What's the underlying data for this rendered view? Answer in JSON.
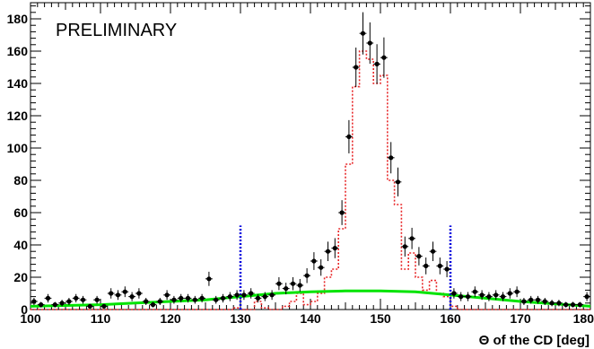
{
  "chart_data": {
    "type": "scatter",
    "xlabel": "Θ of the CD [deg]",
    "ylabel": "",
    "annotation": "PRELIMINARY",
    "xlim": [
      100,
      180
    ],
    "ylim": [
      0,
      190
    ],
    "x_ticks": [
      100,
      110,
      120,
      130,
      140,
      150,
      160,
      170,
      180
    ],
    "y_ticks": [
      20,
      40,
      60,
      80,
      100,
      120,
      140,
      160,
      180
    ],
    "y_tick_labels": [
      "20",
      "40",
      "60",
      "80",
      "100",
      "120",
      "140",
      "160",
      "180"
    ],
    "y_zero_label": "0",
    "series": [
      {
        "kind": "points-with-errors",
        "color": "#000000",
        "bin_width": 1,
        "x": [
          100.5,
          101.5,
          102.5,
          103.5,
          104.5,
          105.5,
          106.5,
          107.5,
          108.5,
          109.5,
          110.5,
          111.5,
          112.5,
          113.5,
          114.5,
          115.5,
          116.5,
          117.5,
          118.5,
          119.5,
          120.5,
          121.5,
          122.5,
          123.5,
          124.5,
          125.5,
          126.5,
          127.5,
          128.5,
          129.5,
          130.5,
          131.5,
          132.5,
          133.5,
          134.5,
          135.5,
          136.5,
          137.5,
          138.5,
          139.5,
          140.5,
          141.5,
          142.5,
          143.5,
          144.5,
          145.5,
          146.5,
          147.5,
          148.5,
          149.5,
          150.5,
          151.5,
          152.5,
          153.5,
          154.5,
          155.5,
          156.5,
          157.5,
          158.5,
          159.5,
          160.5,
          161.5,
          162.5,
          163.5,
          164.5,
          165.5,
          166.5,
          167.5,
          168.5,
          169.5,
          170.5,
          171.5,
          172.5,
          173.5,
          174.5,
          175.5,
          176.5,
          177.5,
          178.5,
          179.5
        ],
        "y": [
          5,
          3,
          7,
          3,
          4,
          5,
          7,
          6,
          2,
          6,
          2,
          10,
          9,
          11,
          8,
          10,
          5,
          3,
          5,
          9,
          6,
          7,
          7,
          6,
          7,
          19,
          6,
          7,
          8,
          9,
          9,
          10,
          7,
          8,
          9,
          16,
          13,
          16,
          15,
          21,
          30,
          26,
          36,
          38,
          60,
          107,
          150,
          171,
          165,
          152,
          156,
          94,
          79,
          39,
          44,
          33,
          27,
          36,
          27,
          25,
          10,
          8,
          8,
          11,
          9,
          8,
          9,
          8,
          10,
          11,
          5,
          6,
          6,
          5,
          4,
          4,
          3,
          3,
          3,
          8
        ],
        "err": [
          2.2,
          1.7,
          2.6,
          1.7,
          2,
          2.2,
          2.6,
          2.4,
          1.4,
          2.4,
          1.4,
          3.2,
          3,
          3.3,
          2.8,
          3.2,
          2.2,
          1.7,
          2.2,
          3,
          2.4,
          2.6,
          2.6,
          2.4,
          2.6,
          4.4,
          2.4,
          2.6,
          2.8,
          3,
          3,
          3.2,
          2.6,
          2.8,
          3,
          4,
          3.6,
          4,
          3.9,
          4.6,
          5.5,
          5.1,
          6,
          6.2,
          7.7,
          10.3,
          12.2,
          13.1,
          12.8,
          12.3,
          12.5,
          9.7,
          8.9,
          6.2,
          6.6,
          5.7,
          5.2,
          6,
          5.2,
          5,
          3.2,
          2.8,
          2.8,
          3.3,
          3,
          2.8,
          3,
          2.8,
          3.2,
          3.3,
          2.2,
          2.4,
          2.4,
          2.2,
          2,
          2,
          1.7,
          1.7,
          1.7,
          2.8
        ]
      },
      {
        "kind": "histogram",
        "color": "#e8282a",
        "bin_width": 1,
        "x": [
          100.5,
          101.5,
          102.5,
          103.5,
          104.5,
          105.5,
          106.5,
          107.5,
          108.5,
          109.5,
          110.5,
          111.5,
          112.5,
          113.5,
          114.5,
          115.5,
          116.5,
          117.5,
          118.5,
          119.5,
          120.5,
          121.5,
          122.5,
          123.5,
          124.5,
          125.5,
          126.5,
          127.5,
          128.5,
          129.5,
          130.5,
          131.5,
          132.5,
          133.5,
          134.5,
          135.5,
          136.5,
          137.5,
          138.5,
          139.5,
          140.5,
          141.5,
          142.5,
          143.5,
          144.5,
          145.5,
          146.5,
          147.5,
          148.5,
          149.5,
          150.5,
          151.5,
          152.5,
          153.5,
          154.5,
          155.5,
          156.5,
          157.5,
          158.5,
          159.5,
          160.5,
          161.5,
          162.5,
          163.5,
          164.5,
          165.5,
          166.5,
          167.5,
          168.5,
          169.5,
          170.5,
          171.5,
          172.5,
          173.5,
          174.5,
          175.5,
          176.5,
          177.5,
          178.5,
          179.5
        ],
        "y": [
          0,
          0,
          0,
          0,
          0,
          0,
          0,
          0,
          0,
          0,
          0,
          0,
          0,
          0,
          0,
          0,
          0,
          0,
          0,
          0,
          0,
          0,
          0,
          0,
          0,
          0,
          0,
          0,
          0,
          1,
          0,
          0,
          5,
          1,
          0,
          0,
          2,
          5,
          10,
          3,
          5,
          10,
          20,
          25,
          50,
          90,
          138,
          160,
          155,
          140,
          145,
          80,
          65,
          25,
          35,
          20,
          12,
          18,
          10,
          8,
          2,
          0,
          0,
          0,
          0,
          0,
          0,
          0,
          0,
          0,
          0,
          0,
          0,
          0,
          0,
          0,
          0,
          0,
          0,
          0
        ]
      },
      {
        "kind": "curve",
        "color": "#00e400",
        "x": [
          100,
          105,
          110,
          115,
          120,
          125,
          130,
          135,
          140,
          145,
          150,
          155,
          160,
          165,
          170,
          175,
          180
        ],
        "y": [
          2,
          2.5,
          3,
          4,
          5,
          6,
          8,
          10,
          11,
          11.5,
          11.5,
          11,
          9,
          7,
          5,
          3.5,
          2
        ]
      },
      {
        "kind": "vertical-dashed-line",
        "color": "#0000dd",
        "x": [
          130,
          160
        ],
        "y_top": 52
      }
    ]
  }
}
